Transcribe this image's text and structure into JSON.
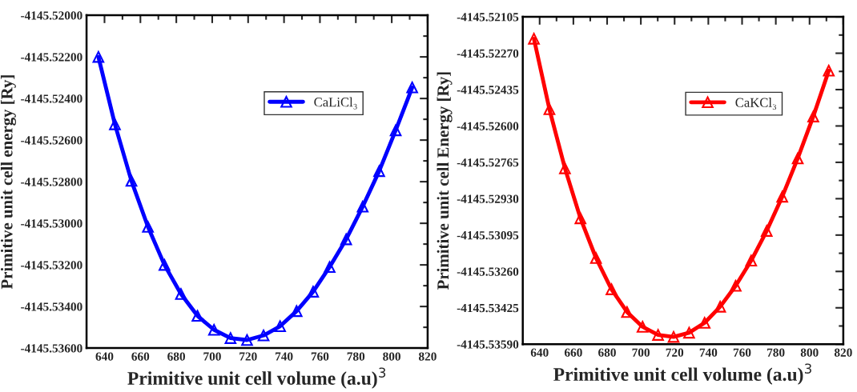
{
  "chart_data": [
    {
      "type": "line",
      "xlabel": "Primitive unit cell volume (a.u)$^{3}$",
      "ylabel": "Primitive unit cell energy [Ry]",
      "x": [
        636.6,
        645.8,
        655.0,
        664.2,
        673.4,
        682.6,
        691.8,
        701.0,
        710.2,
        719.4,
        728.6,
        737.8,
        747.0,
        756.2,
        765.4,
        774.6,
        783.8,
        793.0,
        802.2,
        811.4
      ],
      "series": [
        {
          "name": "CaLiCl₃",
          "color": "#0000ff",
          "values": [
            -4145.522,
            -4145.52524,
            -4145.52796,
            -4145.53017,
            -4145.532,
            -4145.5334,
            -4145.53445,
            -4145.53512,
            -4145.53552,
            -4145.53561,
            -4145.53539,
            -4145.53495,
            -4145.53422,
            -4145.53329,
            -4145.5321,
            -4145.53077,
            -4145.5292,
            -4145.52749,
            -4145.52553,
            -4145.52347
          ]
        }
      ],
      "xlim": [
        630,
        820
      ],
      "xticks": [
        640,
        660,
        680,
        700,
        720,
        740,
        760,
        780,
        800,
        820
      ],
      "ylim": [
        -4145.536,
        -4145.52
      ],
      "yticks": [
        {
          "value": -4145.536,
          "label": "-4145.53600"
        },
        {
          "value": -4145.534,
          "label": "-4145.53400"
        },
        {
          "value": -4145.532,
          "label": "-4145.53200"
        },
        {
          "value": -4145.53,
          "label": "-4145.53000"
        },
        {
          "value": -4145.528,
          "label": "-4145.52800"
        },
        {
          "value": -4145.526,
          "label": "-4145.52600"
        },
        {
          "value": -4145.524,
          "label": "-4145.52400"
        },
        {
          "value": -4145.522,
          "label": "-4145.52200"
        },
        {
          "value": -4145.52,
          "label": "-4145.52000"
        }
      ],
      "marker": "triangle",
      "line_style": "solid",
      "grid": false,
      "legend": "top right"
    },
    {
      "type": "line",
      "xlabel": "Primitive unit cell volume (a.u)$^{3}$",
      "ylabel": "Primitive unit cell Energy [Ry]",
      "x": [
        636.6,
        645.8,
        655.0,
        664.2,
        673.4,
        682.6,
        691.8,
        701.0,
        710.2,
        719.4,
        728.6,
        737.8,
        747.0,
        756.2,
        765.4,
        774.6,
        783.8,
        793.0,
        802.2,
        811.4
      ],
      "series": [
        {
          "name": "CaKCl₃",
          "color": "#ff0000",
          "values": [
            -4145.52204,
            -4145.52524,
            -4145.52792,
            -4145.53019,
            -4145.53199,
            -4145.53341,
            -4145.53444,
            -4145.53511,
            -4145.53548,
            -4145.53557,
            -4145.53538,
            -4145.53493,
            -4145.5342,
            -4145.53325,
            -4145.53211,
            -4145.53076,
            -4145.52921,
            -4145.52747,
            -4145.52557,
            -4145.52349
          ]
        }
      ],
      "xlim": [
        630,
        820
      ],
      "xticks": [
        640,
        660,
        680,
        700,
        720,
        740,
        760,
        780,
        800,
        820
      ],
      "ylim": [
        -4145.5359,
        -4145.52105
      ],
      "yticks": [
        {
          "value": -4145.5359,
          "label": "-4145.53590"
        },
        {
          "value": -4145.53425,
          "label": "-4145.53425"
        },
        {
          "value": -4145.5326,
          "label": "-4145.53260"
        },
        {
          "value": -4145.53095,
          "label": "-4145.53095"
        },
        {
          "value": -4145.5293,
          "label": "-4145.52930"
        },
        {
          "value": -4145.52765,
          "label": "-4145.52765"
        },
        {
          "value": -4145.526,
          "label": "-4145.52600"
        },
        {
          "value": -4145.52435,
          "label": "-4145.52435"
        },
        {
          "value": -4145.5227,
          "label": "-4145.52270"
        },
        {
          "value": -4145.52105,
          "label": "-4145.52105"
        }
      ],
      "marker": "triangle",
      "line_style": "solid",
      "grid": false,
      "legend": "top right"
    }
  ]
}
